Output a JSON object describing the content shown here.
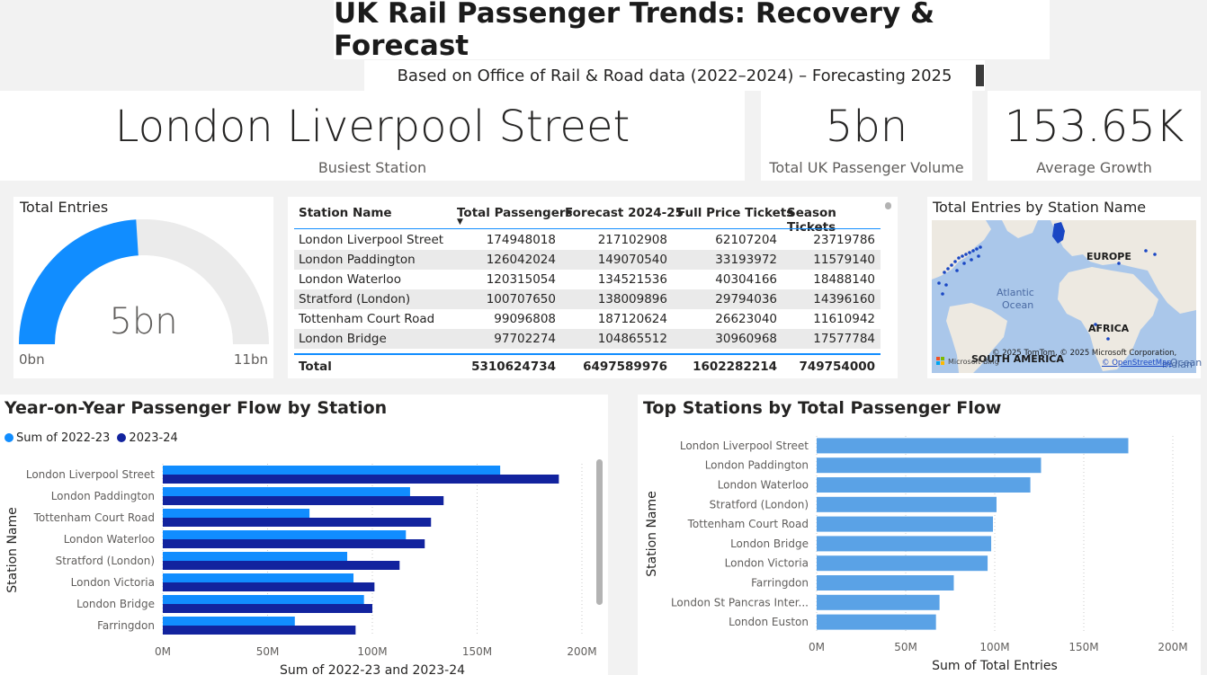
{
  "header": {
    "title": "UK Rail Passenger Trends: Recovery & Forecast",
    "subtitle": "Based on Office of Rail & Road data (2022–2024) – Forecasting 2025"
  },
  "kpis": [
    {
      "value": "London Liverpool Street",
      "label": "Busiest Station"
    },
    {
      "value": "5bn",
      "label": "Total UK Passenger Volume"
    },
    {
      "value": "153.65K",
      "label": "Average Growth"
    }
  ],
  "gauge": {
    "title": "Total Entries",
    "value_label": "5bn",
    "min_label": "0bn",
    "max_label": "11bn",
    "fill_fraction": 0.48,
    "fill_color": "#118dff",
    "track_color": "#ebebeb"
  },
  "table": {
    "headers": [
      "Station Name",
      "Total Passengers",
      "Forecast 2024-25",
      "Full Price Tickets",
      "Season Tickets"
    ],
    "rows": [
      [
        "London Liverpool Street",
        "174948018",
        "217102908",
        "62107204",
        "23719786"
      ],
      [
        "London Paddington",
        "126042024",
        "149070540",
        "33193972",
        "11579140"
      ],
      [
        "London Waterloo",
        "120315054",
        "134521536",
        "40304166",
        "18488140"
      ],
      [
        "Stratford (London)",
        "100707650",
        "138009896",
        "29794036",
        "14396160"
      ],
      [
        "Tottenham Court Road",
        "99096808",
        "187120624",
        "26623040",
        "11610942"
      ],
      [
        "London Bridge",
        "97702274",
        "104865512",
        "30960968",
        "17577784"
      ]
    ],
    "total": [
      "Total",
      "5310624734",
      "6497589976",
      "1602282214",
      "749754000"
    ]
  },
  "map": {
    "title": "Total Entries by Station Name",
    "labels": {
      "europe": "EUROPE",
      "atlantic": "Atlantic",
      "ocean": "Ocean",
      "africa": "AFRICA",
      "south_america": "SOUTH AMERICA",
      "indian": "Indian",
      "ocean2": "Ocean"
    },
    "attribution": "© 2025 TomTom, © 2025 Microsoft Corporation,",
    "osm": "© OpenStreetMap",
    "bing": "Microsoft Bing"
  },
  "chart_data": [
    {
      "type": "bar",
      "title": "Year-on-Year Passenger Flow by Station",
      "xlabel": "Sum of 2022-23 and 2023-24",
      "ylabel": "Station Name",
      "categories": [
        "London Liverpool Street",
        "London Paddington",
        "Tottenham Court Road",
        "London Waterloo",
        "Stratford (London)",
        "London Victoria",
        "London Bridge",
        "Farringdon"
      ],
      "series": [
        {
          "name": "Sum of 2022-23",
          "color": "#118dff",
          "values": [
            161,
            118,
            70,
            116,
            88,
            91,
            96,
            63
          ]
        },
        {
          "name": "2023-24",
          "color": "#12239e",
          "values": [
            189,
            134,
            128,
            125,
            113,
            101,
            100,
            92
          ]
        }
      ],
      "xlim": [
        0,
        200
      ],
      "ticks": [
        "0M",
        "50M",
        "100M",
        "150M",
        "200M"
      ],
      "legend": "top-left",
      "grid": true
    },
    {
      "type": "bar",
      "title": "Top Stations by Total Passenger Flow",
      "xlabel": "Sum of Total Entries",
      "ylabel": "Station Name",
      "categories": [
        "London Liverpool Street",
        "London Paddington",
        "London Waterloo",
        "Stratford (London)",
        "Tottenham Court Road",
        "London Bridge",
        "London Victoria",
        "Farringdon",
        "London St Pancras Inter...",
        "London Euston"
      ],
      "series": [
        {
          "color": "#5aa2e6",
          "values": [
            175,
            126,
            120,
            101,
            99,
            98,
            96,
            77,
            69,
            67
          ]
        }
      ],
      "xlim": [
        0,
        200
      ],
      "ticks": [
        "0M",
        "50M",
        "100M",
        "150M",
        "200M"
      ],
      "grid": true
    }
  ]
}
